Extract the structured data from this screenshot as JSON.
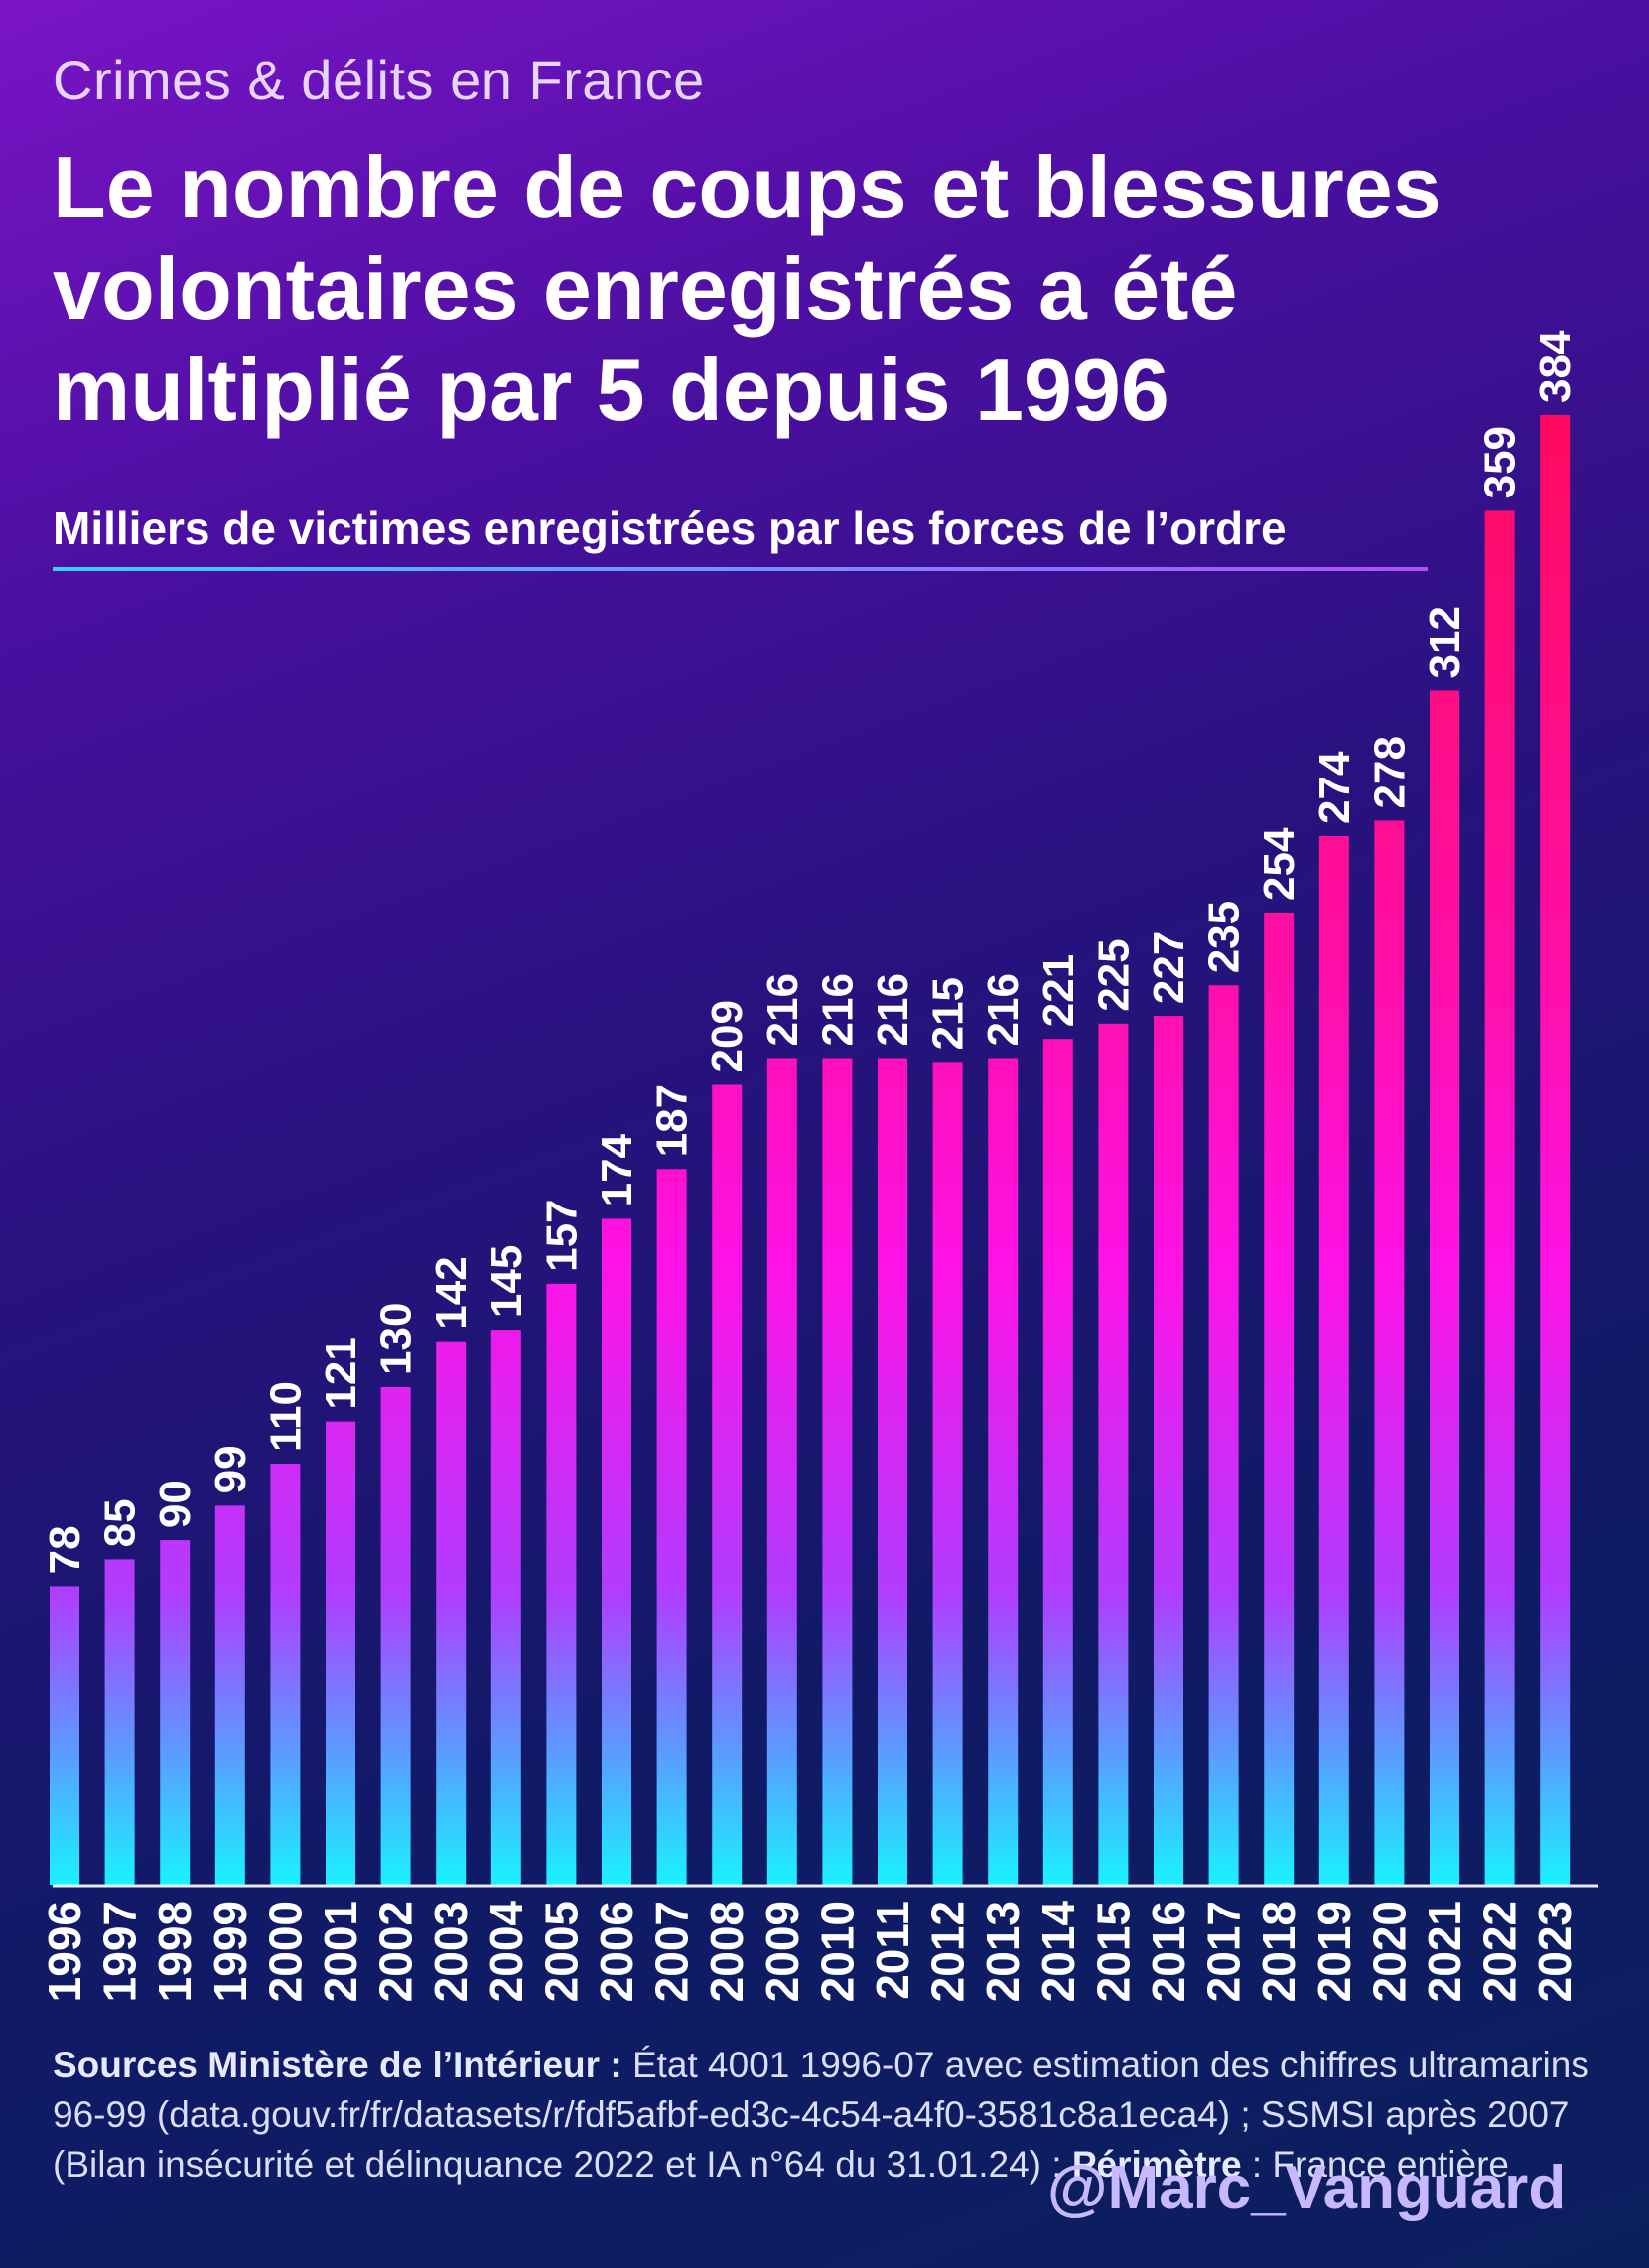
{
  "header": {
    "kicker": "Crimes & délits en France",
    "title": "Le nombre de coups et blessures volontaires enregistrés a été multiplié par 5 depuis 1996"
  },
  "chart_data": {
    "type": "bar",
    "subtitle": "Milliers de victimes enregistrées par les forces de l’ordre",
    "categories": [
      "1996",
      "1997",
      "1998",
      "1999",
      "2000",
      "2001",
      "2002",
      "2003",
      "2004",
      "2005",
      "2006",
      "2007",
      "2008",
      "2009",
      "2010",
      "2011",
      "2012",
      "2013",
      "2014",
      "2015",
      "2016",
      "2017",
      "2018",
      "2019",
      "2020",
      "2021",
      "2022",
      "2023"
    ],
    "values": [
      78,
      85,
      90,
      99,
      110,
      121,
      130,
      142,
      145,
      157,
      174,
      187,
      209,
      216,
      216,
      216,
      215,
      216,
      221,
      225,
      227,
      235,
      254,
      274,
      278,
      312,
      359,
      384
    ],
    "data_labels": true,
    "ylim": [
      0,
      400
    ],
    "grid": false,
    "colors": {
      "bar_top_high": "#ff0a5e",
      "bar_mid": "#ff12e6",
      "bar_base": "#19f2ff",
      "baseline": "#e8ecff"
    }
  },
  "footer": {
    "sources_bold": "Sources Ministère de l’Intérieur :",
    "sources_text": " État 4001 1996-07 avec estimation des chiffres ultramarins 96-99 (data.gouv.fr/fr/datasets/r/fdf5afbf-ed3c-4c54-a4f0-3581c8a1eca4) ; SSMSI après 2007 (Bilan insécurité et délinquance 2022 et IA n°64 du 31.01.24) ; ",
    "perimeter_bold": "Périmètre",
    "perimeter_text": " : France entière",
    "handle": "@Marc_Vanguard"
  }
}
